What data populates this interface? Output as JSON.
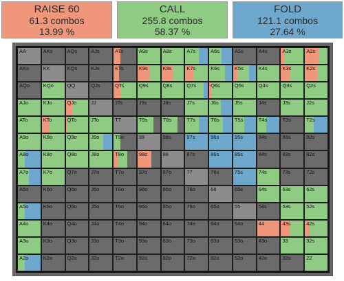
{
  "colors": {
    "raise": "#f0967a",
    "call": "#8fcb83",
    "fold": "#6fa8cd",
    "none": "#6b6b6b",
    "pair_none": "#8c8c8c"
  },
  "summary": {
    "raise": {
      "title": "RAISE 60",
      "combos": "61.3 combos",
      "pct": "13.99 %"
    },
    "call": {
      "title": "CALL",
      "combos": "255.8 combos",
      "pct": "58.37 %"
    },
    "fold": {
      "title": "FOLD",
      "combos": "121.1 combos",
      "pct": "27.64 %"
    }
  },
  "grid": [
    [
      [
        "AA",
        [
          0,
          0,
          0
        ]
      ],
      [
        "AKs",
        [
          0,
          0,
          0
        ]
      ],
      [
        "AQs",
        [
          0,
          0,
          0
        ]
      ],
      [
        "AJs",
        [
          0,
          0,
          0
        ]
      ],
      [
        "ATs",
        [
          0.3,
          0,
          0
        ]
      ],
      [
        "A9s",
        [
          0,
          1,
          0
        ]
      ],
      [
        "A8s",
        [
          0,
          1,
          0
        ]
      ],
      [
        "A7s",
        [
          0,
          0.6,
          0.4
        ]
      ],
      [
        "A6s",
        [
          0,
          0.55,
          0.45
        ]
      ],
      [
        "A5s",
        [
          0,
          0,
          0
        ]
      ],
      [
        "A4s",
        [
          0,
          0,
          0
        ]
      ],
      [
        "A3s",
        [
          0.15,
          0.85,
          0
        ]
      ],
      [
        "A2s",
        [
          0.6,
          0.4,
          0
        ]
      ]
    ],
    [
      [
        "AKo",
        [
          0,
          0,
          0
        ]
      ],
      [
        "KK",
        [
          0,
          0,
          0
        ]
      ],
      [
        "KQs",
        [
          0,
          0,
          0
        ]
      ],
      [
        "KJs",
        [
          0,
          0,
          0
        ]
      ],
      [
        "KTs",
        [
          0.25,
          0,
          0
        ]
      ],
      [
        "K9s",
        [
          0.55,
          0.45,
          0
        ]
      ],
      [
        "K8s",
        [
          0.5,
          0.5,
          0
        ]
      ],
      [
        "K7s",
        [
          0.35,
          0.65,
          0
        ]
      ],
      [
        "K6s",
        [
          0,
          0.7,
          0.3
        ]
      ],
      [
        "K5s",
        [
          0.2,
          0.5,
          0.3
        ]
      ],
      [
        "K4s",
        [
          0,
          1,
          0
        ]
      ],
      [
        "K3s",
        [
          0.4,
          0.6,
          0
        ]
      ],
      [
        "K2s",
        [
          0.55,
          0.45,
          0
        ]
      ]
    ],
    [
      [
        "AQo",
        [
          0,
          0,
          0
        ]
      ],
      [
        "KQo",
        [
          0,
          1,
          0
        ]
      ],
      [
        "QQ",
        [
          0,
          0,
          0
        ]
      ],
      [
        "QJs",
        [
          0,
          0,
          0
        ]
      ],
      [
        "QTs",
        [
          0.3,
          0.7,
          0
        ]
      ],
      [
        "Q9s",
        [
          0,
          1,
          0
        ]
      ],
      [
        "Q8s",
        [
          0,
          1,
          0
        ]
      ],
      [
        "Q7s",
        [
          0,
          0.8,
          0.2
        ]
      ],
      [
        "Q6s",
        [
          0.1,
          0.9,
          0
        ]
      ],
      [
        "Q5s",
        [
          0,
          1,
          0
        ]
      ],
      [
        "Q4s",
        [
          0,
          1,
          0
        ]
      ],
      [
        "Q3s",
        [
          0,
          1,
          0
        ]
      ],
      [
        "Q2s",
        [
          0,
          1,
          0
        ]
      ]
    ],
    [
      [
        "AJo",
        [
          0,
          1,
          0
        ]
      ],
      [
        "KJo",
        [
          0,
          1,
          0
        ]
      ],
      [
        "QJo",
        [
          0.3,
          0.7,
          0
        ]
      ],
      [
        "JJ",
        [
          0,
          0,
          0
        ]
      ],
      [
        "JTs",
        [
          0,
          0,
          0
        ]
      ],
      [
        "J9s",
        [
          0,
          0,
          0
        ]
      ],
      [
        "J8s",
        [
          0,
          0,
          0
        ]
      ],
      [
        "J7s",
        [
          0,
          1,
          0
        ]
      ],
      [
        "J6s",
        [
          0,
          0.5,
          0.5
        ]
      ],
      [
        "J5s",
        [
          0,
          1,
          0
        ]
      ],
      [
        "J4s",
        [
          0,
          0,
          0
        ]
      ],
      [
        "J3s",
        [
          0,
          1,
          0
        ]
      ],
      [
        "J2s",
        [
          0,
          1,
          0
        ]
      ]
    ],
    [
      [
        "ATo",
        [
          0,
          1,
          0
        ]
      ],
      [
        "KTo",
        [
          0.3,
          0.7,
          0
        ]
      ],
      [
        "QTo",
        [
          0.05,
          0.95,
          0
        ]
      ],
      [
        "JTo",
        [
          0,
          1,
          0
        ]
      ],
      [
        "TT",
        [
          0,
          0,
          0
        ]
      ],
      [
        "T9s",
        [
          0,
          0.7,
          0
        ]
      ],
      [
        "T8s",
        [
          0,
          0.7,
          0
        ]
      ],
      [
        "T7s",
        [
          0,
          0.6,
          0.4
        ]
      ],
      [
        "T6s",
        [
          0,
          0.6,
          0.4
        ]
      ],
      [
        "T5s",
        [
          0,
          0.5,
          0.5
        ]
      ],
      [
        "T4s",
        [
          0,
          0.4,
          0.6
        ]
      ],
      [
        "T3s",
        [
          0,
          0,
          0
        ]
      ],
      [
        "T2s",
        [
          0,
          0.4,
          0.6
        ]
      ]
    ],
    [
      [
        "A9o",
        [
          0,
          1,
          0
        ]
      ],
      [
        "K9o",
        [
          0,
          1,
          0
        ]
      ],
      [
        "Q9o",
        [
          0,
          1,
          0
        ]
      ],
      [
        "J9o",
        [
          0,
          0.6,
          0.4
        ]
      ],
      [
        "T9o",
        [
          0,
          0.3,
          0
        ]
      ],
      [
        "99",
        [
          0,
          0,
          0
        ]
      ],
      [
        "98s",
        [
          0,
          0,
          0
        ]
      ],
      [
        "97s",
        [
          0,
          0,
          1
        ]
      ],
      [
        "96s",
        [
          0,
          0,
          1
        ]
      ],
      [
        "95s",
        [
          0,
          0,
          1
        ]
      ],
      [
        "94s",
        [
          0,
          0,
          0
        ]
      ],
      [
        "93s",
        [
          0,
          0,
          0
        ]
      ],
      [
        "92s",
        [
          0,
          0,
          0
        ]
      ]
    ],
    [
      [
        "A8o",
        [
          0,
          0.3,
          0.7
        ]
      ],
      [
        "K8o",
        [
          0,
          1,
          0
        ]
      ],
      [
        "Q8o",
        [
          0,
          1,
          0
        ]
      ],
      [
        "J8o",
        [
          0,
          1,
          0
        ]
      ],
      [
        "T8o",
        [
          0.2,
          0.4,
          0
        ]
      ],
      [
        "98o",
        [
          0.6,
          0,
          0
        ]
      ],
      [
        "88",
        [
          0,
          0,
          0
        ]
      ],
      [
        "87s",
        [
          0,
          0,
          0
        ]
      ],
      [
        "86s",
        [
          0,
          0,
          1
        ]
      ],
      [
        "85s",
        [
          0,
          0,
          1
        ]
      ],
      [
        "84s",
        [
          0,
          0,
          0
        ]
      ],
      [
        "83s",
        [
          0,
          0,
          0
        ]
      ],
      [
        "82s",
        [
          0,
          0,
          0
        ]
      ]
    ],
    [
      [
        "A7o",
        [
          0,
          0.5,
          0.5
        ]
      ],
      [
        "K7o",
        [
          0,
          1,
          0
        ]
      ],
      [
        "Q7o",
        [
          0,
          0,
          0
        ]
      ],
      [
        "J7o",
        [
          0,
          0,
          0
        ]
      ],
      [
        "T7o",
        [
          0,
          0,
          0
        ]
      ],
      [
        "97o",
        [
          0,
          0,
          0
        ]
      ],
      [
        "87o",
        [
          0,
          0,
          0
        ]
      ],
      [
        "77",
        [
          0,
          0,
          0
        ]
      ],
      [
        "76s",
        [
          0,
          0,
          0
        ]
      ],
      [
        "75s",
        [
          0,
          0,
          1
        ]
      ],
      [
        "74s",
        [
          0,
          1,
          0
        ]
      ],
      [
        "73s",
        [
          0,
          0,
          0
        ]
      ],
      [
        "72s",
        [
          0,
          0,
          0
        ]
      ]
    ],
    [
      [
        "A6o",
        [
          0,
          0,
          0
        ]
      ],
      [
        "K6o",
        [
          0,
          0,
          0
        ]
      ],
      [
        "Q6o",
        [
          0,
          0,
          0
        ]
      ],
      [
        "J6o",
        [
          0,
          0,
          0
        ]
      ],
      [
        "T6o",
        [
          0,
          0,
          0
        ]
      ],
      [
        "96o",
        [
          0,
          0,
          0
        ]
      ],
      [
        "86o",
        [
          0,
          0,
          0
        ]
      ],
      [
        "76o",
        [
          0,
          0,
          0
        ]
      ],
      [
        "66",
        [
          0,
          0,
          0
        ]
      ],
      [
        "65s",
        [
          0,
          0,
          0
        ]
      ],
      [
        "64s",
        [
          0,
          1,
          0
        ]
      ],
      [
        "63s",
        [
          0,
          1,
          0
        ]
      ],
      [
        "62s",
        [
          0,
          1,
          0
        ]
      ]
    ],
    [
      [
        "A5o",
        [
          0,
          0.3,
          0.7
        ]
      ],
      [
        "K5o",
        [
          0,
          0,
          0
        ]
      ],
      [
        "Q5o",
        [
          0,
          0,
          0
        ]
      ],
      [
        "J5o",
        [
          0,
          0,
          0
        ]
      ],
      [
        "T5o",
        [
          0,
          0,
          0
        ]
      ],
      [
        "95o",
        [
          0,
          0,
          0
        ]
      ],
      [
        "85o",
        [
          0,
          0,
          0
        ]
      ],
      [
        "75o",
        [
          0,
          0,
          0
        ]
      ],
      [
        "65o",
        [
          0,
          0,
          0
        ]
      ],
      [
        "55",
        [
          0,
          0,
          0
        ]
      ],
      [
        "54s",
        [
          0,
          0,
          0
        ]
      ],
      [
        "53s",
        [
          0,
          1,
          0
        ]
      ],
      [
        "52s",
        [
          0,
          1,
          0
        ]
      ]
    ],
    [
      [
        "A4o",
        [
          0,
          1,
          0
        ]
      ],
      [
        "K4o",
        [
          0,
          0,
          0
        ]
      ],
      [
        "Q4o",
        [
          0,
          0,
          0
        ]
      ],
      [
        "J4o",
        [
          0,
          0,
          0
        ]
      ],
      [
        "T4o",
        [
          0,
          0,
          0
        ]
      ],
      [
        "94o",
        [
          0,
          0,
          0
        ]
      ],
      [
        "84o",
        [
          0,
          0,
          0
        ]
      ],
      [
        "74o",
        [
          0,
          0,
          0
        ]
      ],
      [
        "64o",
        [
          0,
          0,
          0
        ]
      ],
      [
        "54o",
        [
          0,
          0,
          0
        ]
      ],
      [
        "44",
        [
          1,
          0,
          0
        ]
      ],
      [
        "43s",
        [
          0.4,
          0.6,
          0
        ]
      ],
      [
        "42s",
        [
          0.2,
          0.8,
          0
        ]
      ]
    ],
    [
      [
        "A3o",
        [
          0,
          1,
          0
        ]
      ],
      [
        "K3o",
        [
          0,
          0,
          0
        ]
      ],
      [
        "Q3o",
        [
          0,
          0,
          0
        ]
      ],
      [
        "J3o",
        [
          0,
          0,
          0
        ]
      ],
      [
        "T3o",
        [
          0,
          0,
          0
        ]
      ],
      [
        "93o",
        [
          0,
          0,
          0
        ]
      ],
      [
        "83o",
        [
          0,
          0,
          0
        ]
      ],
      [
        "73o",
        [
          0,
          0,
          0
        ]
      ],
      [
        "63o",
        [
          0,
          0,
          0
        ]
      ],
      [
        "53o",
        [
          0,
          0,
          0
        ]
      ],
      [
        "43o",
        [
          0,
          0,
          0
        ]
      ],
      [
        "33",
        [
          0,
          1,
          0
        ]
      ],
      [
        "32s",
        [
          0,
          1,
          0
        ]
      ]
    ],
    [
      [
        "A2o",
        [
          0,
          0.3,
          0.7
        ]
      ],
      [
        "K2o",
        [
          0,
          0,
          0
        ]
      ],
      [
        "Q2o",
        [
          0,
          0,
          0
        ]
      ],
      [
        "J2o",
        [
          0,
          0,
          0
        ]
      ],
      [
        "T2o",
        [
          0,
          0,
          0
        ]
      ],
      [
        "92o",
        [
          0,
          0,
          0
        ]
      ],
      [
        "82o",
        [
          0,
          0,
          0
        ]
      ],
      [
        "72o",
        [
          0,
          0,
          0
        ]
      ],
      [
        "62o",
        [
          0,
          0,
          0
        ]
      ],
      [
        "52o",
        [
          0,
          0,
          0
        ]
      ],
      [
        "42o",
        [
          0,
          0,
          0
        ]
      ],
      [
        "32o",
        [
          0,
          0,
          0
        ]
      ],
      [
        "22",
        [
          0,
          1,
          0
        ]
      ]
    ]
  ]
}
